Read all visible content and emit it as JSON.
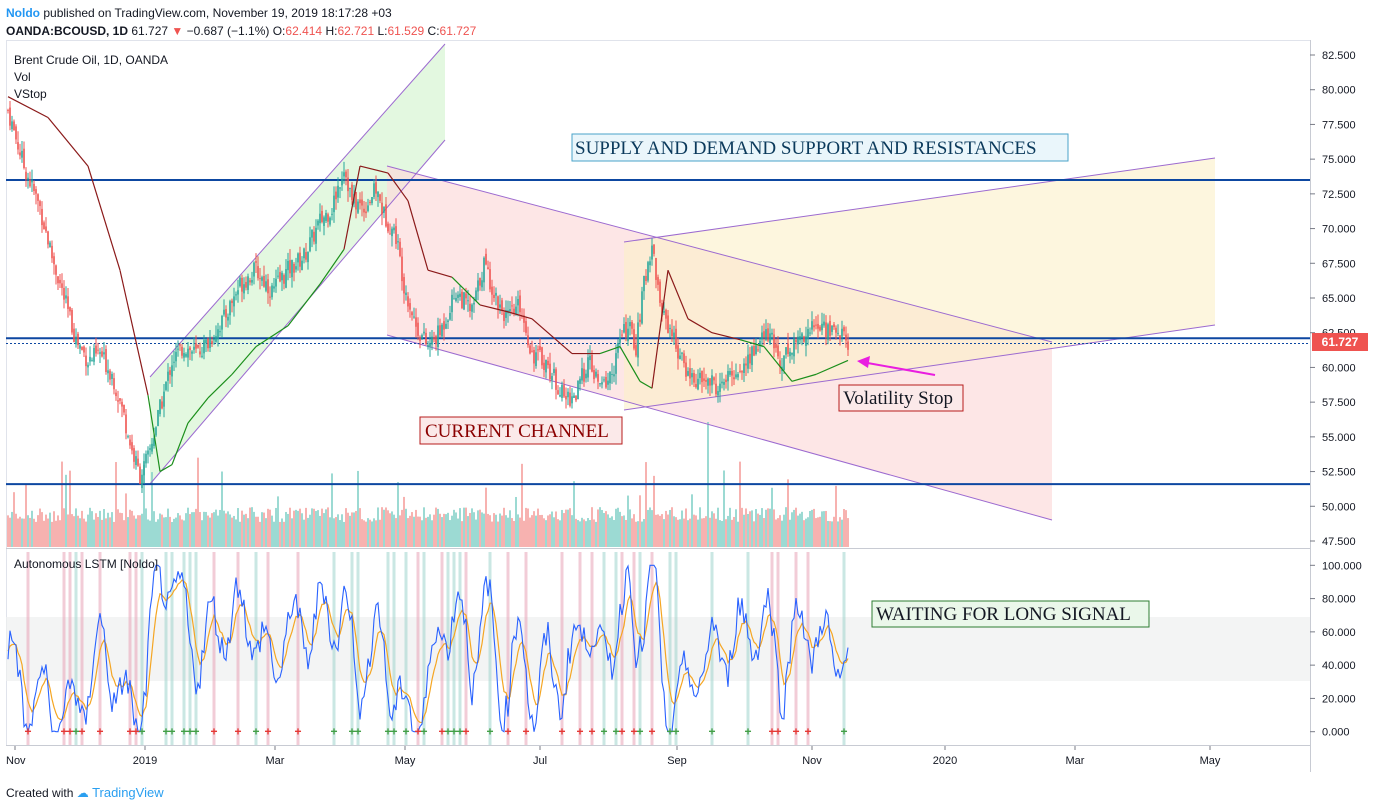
{
  "header": {
    "author": "Noldo",
    "published_text": "published on TradingView.com, November 19, 2019 18:17:28 +03",
    "symbol": "OANDA:BCOUSD, 1D",
    "last": "61.727",
    "change": "−0.687 (−1.1%)",
    "o_label": "O:",
    "o": "62.414",
    "h_label": "H:",
    "h": "62.721",
    "l_label": "L:",
    "l": "61.529",
    "c_label": "C:",
    "c": "61.727"
  },
  "legend": {
    "title": "Brent Crude Oil, 1D, OANDA",
    "vol": "Vol",
    "vstop": "VStop",
    "lstm": "Autonomous LSTM [Noldo]"
  },
  "annotations": {
    "supply": "SUPPLY AND DEMAND SUPPORT AND RESISTANCES",
    "channel": "CURRENT CHANNEL",
    "vstop": "Volatility Stop",
    "waiting": "WAITING FOR LONG SIGNAL"
  },
  "price_badge": "61.727",
  "footer": {
    "created_with": "Created with",
    "brand": "TradingView"
  },
  "colors": {
    "up": "#26a69a",
    "down": "#ef5350",
    "vstop_up": "#1b8f1b",
    "vstop_down": "#8b1a1a",
    "hline": "#0d47a1",
    "channel": "#9c6ad0",
    "lstm_fast": "#2962ff",
    "lstm_slow": "#f5a623"
  },
  "chart_data": [
    {
      "type": "candlestick",
      "title": "Brent Crude Oil, 1D, OANDA",
      "x_ticks": [
        "Nov",
        "2019",
        "Mar",
        "May",
        "Jul",
        "Sep",
        "Nov",
        "2020",
        "Mar",
        "May"
      ],
      "y_ticks": [
        "47.500",
        "50.000",
        "52.500",
        "55.000",
        "57.500",
        "60.000",
        "62.500",
        "65.000",
        "67.500",
        "70.000",
        "72.500",
        "75.000",
        "77.500",
        "80.000",
        "82.500"
      ],
      "ylim": [
        47.5,
        83.5
      ],
      "last_price": 61.727,
      "horizontal_levels": [
        73.5,
        62.1,
        51.6
      ],
      "close_path": [
        [
          0,
          78.5
        ],
        [
          8,
          74.5
        ],
        [
          16,
          71.5
        ],
        [
          22,
          68.0
        ],
        [
          28,
          65.0
        ],
        [
          34,
          62.0
        ],
        [
          40,
          60.5
        ],
        [
          46,
          61.0
        ],
        [
          52,
          59.5
        ],
        [
          58,
          56.5
        ],
        [
          62,
          54.0
        ],
        [
          66,
          52.2
        ],
        [
          70,
          53.5
        ],
        [
          76,
          57.0
        ],
        [
          82,
          60.5
        ],
        [
          88,
          61.5
        ],
        [
          94,
          61.0
        ],
        [
          100,
          61.8
        ],
        [
          108,
          63.5
        ],
        [
          116,
          66.0
        ],
        [
          124,
          67.0
        ],
        [
          132,
          65.5
        ],
        [
          140,
          67.0
        ],
        [
          148,
          68.0
        ],
        [
          156,
          70.5
        ],
        [
          162,
          71.5
        ],
        [
          168,
          74.5
        ],
        [
          172,
          72.0
        ],
        [
          178,
          71.5
        ],
        [
          184,
          72.8
        ],
        [
          188,
          71.0
        ],
        [
          194,
          69.5
        ],
        [
          198,
          66.0
        ],
        [
          204,
          63.0
        ],
        [
          210,
          61.5
        ],
        [
          216,
          62.5
        ],
        [
          224,
          65.5
        ],
        [
          232,
          64.0
        ],
        [
          238,
          67.5
        ],
        [
          244,
          65.0
        ],
        [
          250,
          63.5
        ],
        [
          256,
          64.5
        ],
        [
          262,
          61.0
        ],
        [
          268,
          60.5
        ],
        [
          274,
          59.0
        ],
        [
          278,
          57.8
        ],
        [
          284,
          58.0
        ],
        [
          290,
          60.5
        ],
        [
          296,
          58.5
        ],
        [
          302,
          59.5
        ],
        [
          306,
          62.0
        ],
        [
          310,
          63.0
        ],
        [
          314,
          61.5
        ],
        [
          318,
          66.0
        ],
        [
          322,
          69.0
        ],
        [
          326,
          64.5
        ],
        [
          332,
          62.5
        ],
        [
          338,
          60.0
        ],
        [
          344,
          59.0
        ],
        [
          350,
          59.0
        ],
        [
          356,
          58.5
        ],
        [
          362,
          59.5
        ],
        [
          368,
          60.0
        ],
        [
          374,
          61.5
        ],
        [
          380,
          62.5
        ],
        [
          386,
          60.5
        ],
        [
          392,
          61.5
        ],
        [
          398,
          62.5
        ],
        [
          404,
          63.0
        ],
        [
          410,
          62.8
        ],
        [
          416,
          62.5
        ],
        [
          420,
          61.7
        ]
      ],
      "volatility_stop": [
        [
          0,
          79.5
        ],
        [
          20,
          78.0
        ],
        [
          40,
          74.5
        ],
        [
          56,
          67.0
        ],
        [
          70,
          58.0
        ],
        [
          76,
          52.5
        ],
        [
          82,
          53.0
        ],
        [
          90,
          56.0
        ],
        [
          100,
          57.8
        ],
        [
          112,
          59.5
        ],
        [
          124,
          61.5
        ],
        [
          140,
          63.0
        ],
        [
          156,
          66.0
        ],
        [
          168,
          68.5
        ],
        [
          176,
          74.5
        ],
        [
          190,
          74.0
        ],
        [
          200,
          72.0
        ],
        [
          210,
          67.0
        ],
        [
          222,
          66.5
        ],
        [
          236,
          64.5
        ],
        [
          250,
          64.0
        ],
        [
          262,
          63.5
        ],
        [
          274,
          62.0
        ],
        [
          282,
          61.0
        ],
        [
          296,
          61.0
        ],
        [
          306,
          61.5
        ],
        [
          316,
          59.0
        ],
        [
          322,
          58.5
        ],
        [
          330,
          67.0
        ],
        [
          340,
          63.5
        ],
        [
          352,
          62.5
        ],
        [
          366,
          62.0
        ],
        [
          378,
          61.5
        ],
        [
          392,
          59.0
        ],
        [
          404,
          59.5
        ],
        [
          420,
          60.5
        ]
      ]
    },
    {
      "type": "bar",
      "title": "Vol",
      "values_note": "daily volume bars under price pane"
    },
    {
      "type": "line",
      "title": "Autonomous LSTM [Noldo]",
      "y_ticks": [
        "0.000",
        "20.000",
        "40.000",
        "60.000",
        "80.000",
        "100.000"
      ],
      "ylim": [
        -8,
        108
      ],
      "band": [
        30,
        70
      ]
    }
  ]
}
